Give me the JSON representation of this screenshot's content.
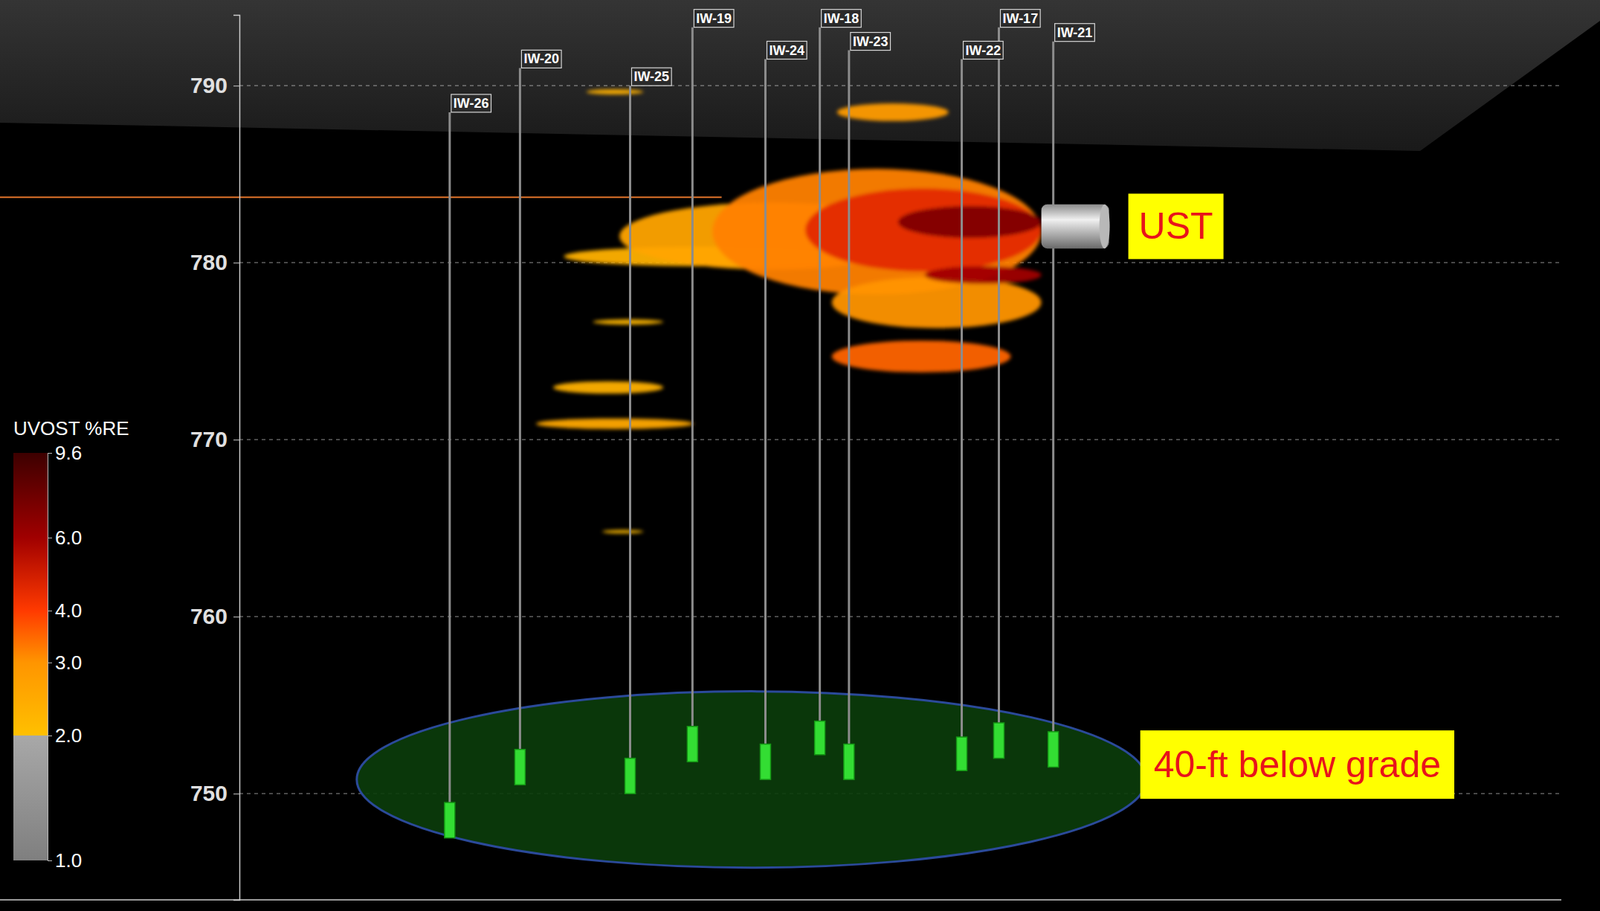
{
  "chart_data": {
    "type": "well-profile",
    "xlim": [
      -17.7,
      100
    ],
    "ylim": [
      744,
      794
    ],
    "yticks": [
      750,
      760,
      770,
      780,
      790
    ],
    "tick_labels": "y",
    "grid": true,
    "wells": [
      {
        "name": "IW-26",
        "x": 16.2,
        "top": 788.5,
        "screen": [
          747.5,
          749.5
        ]
      },
      {
        "name": "IW-20",
        "x": 21.5,
        "top": 791,
        "screen": [
          750.5,
          752.5
        ]
      },
      {
        "name": "IW-25",
        "x": 29.8,
        "top": 790,
        "screen": [
          750,
          752
        ]
      },
      {
        "name": "IW-19",
        "x": 34.5,
        "top": 793.3,
        "screen": [
          751.8,
          753.8
        ]
      },
      {
        "name": "IW-24",
        "x": 40,
        "top": 791.5,
        "screen": [
          750.8,
          752.8
        ]
      },
      {
        "name": "IW-18",
        "x": 44.1,
        "top": 793.3,
        "screen": [
          752.2,
          754.1
        ]
      },
      {
        "name": "IW-23",
        "x": 46.3,
        "top": 792,
        "screen": [
          750.8,
          752.8
        ]
      },
      {
        "name": "IW-22",
        "x": 54.8,
        "top": 791.5,
        "screen": [
          751.3,
          753.2
        ]
      },
      {
        "name": "IW-17",
        "x": 57.6,
        "top": 793.3,
        "screen": [
          752,
          754
        ]
      },
      {
        "name": "IW-21",
        "x": 61.7,
        "top": 792.5,
        "screen": [
          751.5,
          753.5
        ]
      }
    ],
    "plumes": [
      {
        "x": [
          26.5,
          30.8
        ],
        "elevation": [
          789.5,
          789.8
        ],
        "re": 2.3
      },
      {
        "x": [
          45.4,
          53.8
        ],
        "elevation": [
          788,
          789
        ],
        "re": 2.8
      },
      {
        "x": [
          24.8,
          46
        ],
        "elevation": [
          779.8,
          780.9
        ],
        "re": 2.3
      },
      {
        "x": [
          29,
          52
        ],
        "elevation": [
          779.6,
          783.4
        ],
        "re": 2.6
      },
      {
        "x": [
          36,
          60.8
        ],
        "elevation": [
          778.2,
          785.3
        ],
        "re": 3.2
      },
      {
        "x": [
          45,
          60.8
        ],
        "elevation": [
          776.3,
          779.2
        ],
        "re": 3.0
      },
      {
        "x": [
          43,
          60.8
        ],
        "elevation": [
          779.5,
          784.2
        ],
        "re": 4.5
      },
      {
        "x": [
          50,
          60.8
        ],
        "elevation": [
          781.4,
          783.2
        ],
        "re": 7.0
      },
      {
        "x": [
          52,
          60.8
        ],
        "elevation": [
          778.8,
          779.8
        ],
        "re": 6.0
      },
      {
        "x": [
          45,
          58.5
        ],
        "elevation": [
          773.8,
          775.6
        ],
        "re": 3.5
      },
      {
        "x": [
          27,
          32.3
        ],
        "elevation": [
          776.5,
          776.8
        ],
        "re": 2.2
      },
      {
        "x": [
          24,
          32.3
        ],
        "elevation": [
          772.6,
          773.3
        ],
        "re": 2.3
      },
      {
        "x": [
          22.7,
          34.6
        ],
        "elevation": [
          770.6,
          771.2
        ],
        "re": 2.5
      },
      {
        "x": [
          27.7,
          30.8
        ],
        "elevation": [
          764.7,
          764.9
        ],
        "re": 2.1
      }
    ],
    "ust": {
      "label": "UST",
      "x": [
        60.8,
        65.9
      ],
      "elevation": [
        780.8,
        783.3
      ]
    },
    "screen_zone": {
      "label": "40-ft below grade"
    },
    "reference_line": {
      "elevation": 783.7,
      "x": [
        -17.7,
        36.7
      ]
    },
    "colorbar": {
      "title": "UVOST %RE",
      "range": [
        1,
        9.6
      ],
      "log": true,
      "ticks": [
        {
          "value": 1,
          "label": "1.0"
        },
        {
          "value": 2,
          "label": "2.0"
        },
        {
          "value": 3,
          "label": "3.0"
        },
        {
          "value": 4,
          "label": "4.0"
        },
        {
          "value": 6,
          "label": "6.0"
        },
        9.6
      ],
      "stops": [
        {
          "value": 1,
          "color": "#7f7f7f"
        },
        {
          "value": 2,
          "color": "#a8a8a8"
        },
        {
          "value": 2,
          "color": "#ffc000"
        },
        {
          "value": 3,
          "color": "#ff9500"
        },
        {
          "value": 4,
          "color": "#ff3a00"
        },
        {
          "value": 6,
          "color": "#a00000"
        },
        {
          "value": 9.6,
          "color": "#3d0000"
        }
      ]
    }
  }
}
